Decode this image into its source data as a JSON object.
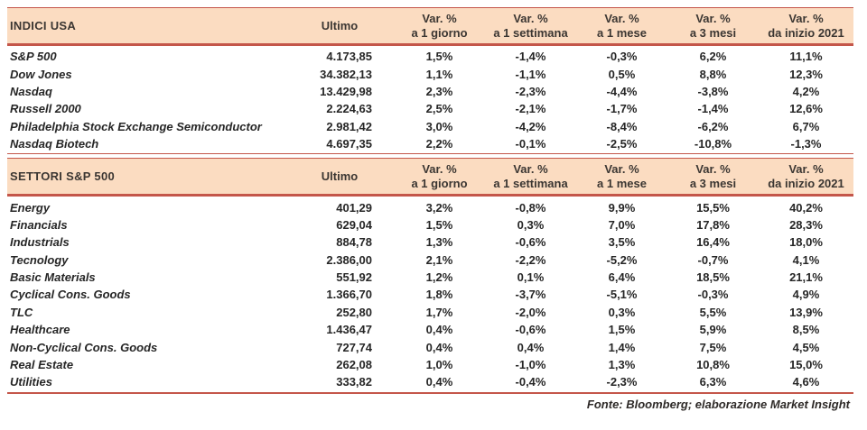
{
  "colors": {
    "accent_border": "#C4564A",
    "header_bg": "#FBDCC1",
    "text": "#2E2E2E"
  },
  "footer": {
    "source_note": "Fonte: Bloomberg; elaborazione Market Insight"
  },
  "tables": [
    {
      "title": "INDICI USA",
      "ultimo_label": "Ultimo",
      "var_columns": [
        {
          "line1": "Var. %",
          "line2": "a 1 giorno"
        },
        {
          "line1": "Var. %",
          "line2": "a 1 settimana"
        },
        {
          "line1": "Var. %",
          "line2": "a 1 mese"
        },
        {
          "line1": "Var. %",
          "line2": "a 3 mesi"
        },
        {
          "line1": "Var. %",
          "line2": "da inizio 2021"
        }
      ],
      "rows": [
        {
          "name": "S&P 500",
          "ultimo": "4.173,85",
          "vars": [
            "1,5%",
            "-1,4%",
            "-0,3%",
            "6,2%",
            "11,1%"
          ]
        },
        {
          "name": "Dow Jones",
          "ultimo": "34.382,13",
          "vars": [
            "1,1%",
            "-1,1%",
            "0,5%",
            "8,8%",
            "12,3%"
          ]
        },
        {
          "name": "Nasdaq",
          "ultimo": "13.429,98",
          "vars": [
            "2,3%",
            "-2,3%",
            "-4,4%",
            "-3,8%",
            "4,2%"
          ]
        },
        {
          "name": "Russell 2000",
          "ultimo": "2.224,63",
          "vars": [
            "2,5%",
            "-2,1%",
            "-1,7%",
            "-1,4%",
            "12,6%"
          ]
        },
        {
          "name": "Philadelphia Stock Exchange Semiconductor",
          "ultimo": "2.981,42",
          "vars": [
            "3,0%",
            "-4,2%",
            "-8,4%",
            "-6,2%",
            "6,7%"
          ]
        },
        {
          "name": "Nasdaq Biotech",
          "ultimo": "4.697,35",
          "vars": [
            "2,2%",
            "-0,1%",
            "-2,5%",
            "-10,8%",
            "-1,3%"
          ]
        }
      ]
    },
    {
      "title": "SETTORI S&P 500",
      "ultimo_label": "Ultimo",
      "var_columns": [
        {
          "line1": "Var. %",
          "line2": "a 1 giorno"
        },
        {
          "line1": "Var. %",
          "line2": "a 1 settimana"
        },
        {
          "line1": "Var. %",
          "line2": "a 1 mese"
        },
        {
          "line1": "Var. %",
          "line2": "a 3 mesi"
        },
        {
          "line1": "Var. %",
          "line2": "da inizio 2021"
        }
      ],
      "rows": [
        {
          "name": "Energy",
          "ultimo": "401,29",
          "vars": [
            "3,2%",
            "-0,8%",
            "9,9%",
            "15,5%",
            "40,2%"
          ]
        },
        {
          "name": "Financials",
          "ultimo": "629,04",
          "vars": [
            "1,5%",
            "0,3%",
            "7,0%",
            "17,8%",
            "28,3%"
          ]
        },
        {
          "name": "Industrials",
          "ultimo": "884,78",
          "vars": [
            "1,3%",
            "-0,6%",
            "3,5%",
            "16,4%",
            "18,0%"
          ]
        },
        {
          "name": "Tecnology",
          "ultimo": "2.386,00",
          "vars": [
            "2,1%",
            "-2,2%",
            "-5,2%",
            "-0,7%",
            "4,1%"
          ]
        },
        {
          "name": "Basic Materials",
          "ultimo": "551,92",
          "vars": [
            "1,2%",
            "0,1%",
            "6,4%",
            "18,5%",
            "21,1%"
          ]
        },
        {
          "name": "Cyclical Cons. Goods",
          "ultimo": "1.366,70",
          "vars": [
            "1,8%",
            "-3,7%",
            "-5,1%",
            "-0,3%",
            "4,9%"
          ]
        },
        {
          "name": "TLC",
          "ultimo": "252,80",
          "vars": [
            "1,7%",
            "-2,0%",
            "0,3%",
            "5,5%",
            "13,9%"
          ]
        },
        {
          "name": "Healthcare",
          "ultimo": "1.436,47",
          "vars": [
            "0,4%",
            "-0,6%",
            "1,5%",
            "5,9%",
            "8,5%"
          ]
        },
        {
          "name": "Non-Cyclical Cons. Goods",
          "ultimo": "727,74",
          "vars": [
            "0,4%",
            "0,4%",
            "1,4%",
            "7,5%",
            "4,5%"
          ]
        },
        {
          "name": "Real Estate",
          "ultimo": "262,08",
          "vars": [
            "1,0%",
            "-1,0%",
            "1,3%",
            "10,8%",
            "15,0%"
          ]
        },
        {
          "name": "Utilities",
          "ultimo": "333,82",
          "vars": [
            "0,4%",
            "-0,4%",
            "-2,3%",
            "6,3%",
            "4,6%"
          ]
        }
      ]
    }
  ]
}
